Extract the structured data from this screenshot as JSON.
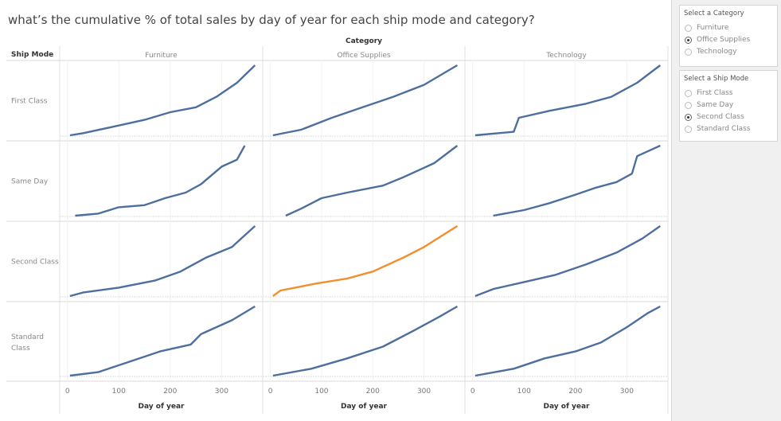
{
  "title": "what’s the cumulative % of total sales by day of year for each ship mode and category?",
  "category_filter": {
    "title": "Select a Category",
    "options": [
      "Furniture",
      "Office Supplies",
      "Technology"
    ],
    "selected": "Office Supplies"
  },
  "shipmode_filter": {
    "title": "Select a Ship Mode",
    "options": [
      "First Class",
      "Same Day",
      "Second Class",
      "Standard Class"
    ],
    "selected": "Second Class"
  },
  "colors": {
    "line": "#4e6f9e",
    "highlight": "#f28e2b"
  },
  "chart_data": {
    "type": "line",
    "column_header": "Category",
    "row_header": "Ship Mode",
    "columns": [
      "Furniture",
      "Office Supplies",
      "Technology"
    ],
    "rows": [
      "First Class",
      "Same Day",
      "Second Class",
      "Standard Class"
    ],
    "xlabel": "Day of year",
    "xticks": [
      0,
      100,
      200,
      300
    ],
    "xlim": [
      -15,
      380
    ],
    "ylim": [
      0,
      100
    ],
    "highlighted": {
      "row": "Second Class",
      "column": "Office Supplies"
    },
    "series": [
      [
        [
          [
            5,
            0
          ],
          [
            30,
            3
          ],
          [
            100,
            14
          ],
          [
            150,
            22
          ],
          [
            200,
            33
          ],
          [
            250,
            40
          ],
          [
            290,
            55
          ],
          [
            330,
            75
          ],
          [
            365,
            100
          ]
        ],
        [
          [
            5,
            0
          ],
          [
            60,
            8
          ],
          [
            120,
            25
          ],
          [
            180,
            40
          ],
          [
            240,
            55
          ],
          [
            300,
            72
          ],
          [
            365,
            100
          ]
        ],
        [
          [
            5,
            0
          ],
          [
            80,
            5
          ],
          [
            90,
            25
          ],
          [
            150,
            35
          ],
          [
            220,
            45
          ],
          [
            270,
            55
          ],
          [
            320,
            75
          ],
          [
            365,
            100
          ]
        ]
      ],
      [
        [
          [
            15,
            0
          ],
          [
            60,
            3
          ],
          [
            100,
            12
          ],
          [
            150,
            15
          ],
          [
            190,
            25
          ],
          [
            230,
            33
          ],
          [
            260,
            45
          ],
          [
            300,
            70
          ],
          [
            330,
            80
          ],
          [
            345,
            100
          ]
        ],
        [
          [
            30,
            0
          ],
          [
            60,
            10
          ],
          [
            100,
            25
          ],
          [
            150,
            33
          ],
          [
            220,
            43
          ],
          [
            260,
            55
          ],
          [
            320,
            75
          ],
          [
            365,
            100
          ]
        ],
        [
          [
            40,
            0
          ],
          [
            100,
            8
          ],
          [
            150,
            18
          ],
          [
            200,
            30
          ],
          [
            240,
            40
          ],
          [
            280,
            48
          ],
          [
            310,
            60
          ],
          [
            320,
            85
          ],
          [
            365,
            100
          ]
        ]
      ],
      [
        [
          [
            5,
            0
          ],
          [
            30,
            5
          ],
          [
            100,
            12
          ],
          [
            170,
            22
          ],
          [
            220,
            35
          ],
          [
            270,
            55
          ],
          [
            320,
            70
          ],
          [
            365,
            100
          ]
        ],
        [
          [
            5,
            0
          ],
          [
            20,
            8
          ],
          [
            90,
            18
          ],
          [
            150,
            25
          ],
          [
            200,
            35
          ],
          [
            260,
            55
          ],
          [
            300,
            70
          ],
          [
            365,
            100
          ]
        ],
        [
          [
            5,
            0
          ],
          [
            40,
            10
          ],
          [
            100,
            20
          ],
          [
            160,
            30
          ],
          [
            220,
            45
          ],
          [
            280,
            62
          ],
          [
            330,
            82
          ],
          [
            365,
            100
          ]
        ]
      ],
      [
        [
          [
            5,
            0
          ],
          [
            60,
            5
          ],
          [
            120,
            20
          ],
          [
            180,
            35
          ],
          [
            240,
            45
          ],
          [
            260,
            60
          ],
          [
            320,
            80
          ],
          [
            365,
            100
          ]
        ],
        [
          [
            5,
            0
          ],
          [
            80,
            10
          ],
          [
            150,
            25
          ],
          [
            220,
            42
          ],
          [
            280,
            65
          ],
          [
            330,
            85
          ],
          [
            365,
            100
          ]
        ],
        [
          [
            5,
            0
          ],
          [
            80,
            10
          ],
          [
            140,
            25
          ],
          [
            200,
            35
          ],
          [
            250,
            48
          ],
          [
            300,
            70
          ],
          [
            340,
            90
          ],
          [
            365,
            100
          ]
        ]
      ]
    ]
  }
}
